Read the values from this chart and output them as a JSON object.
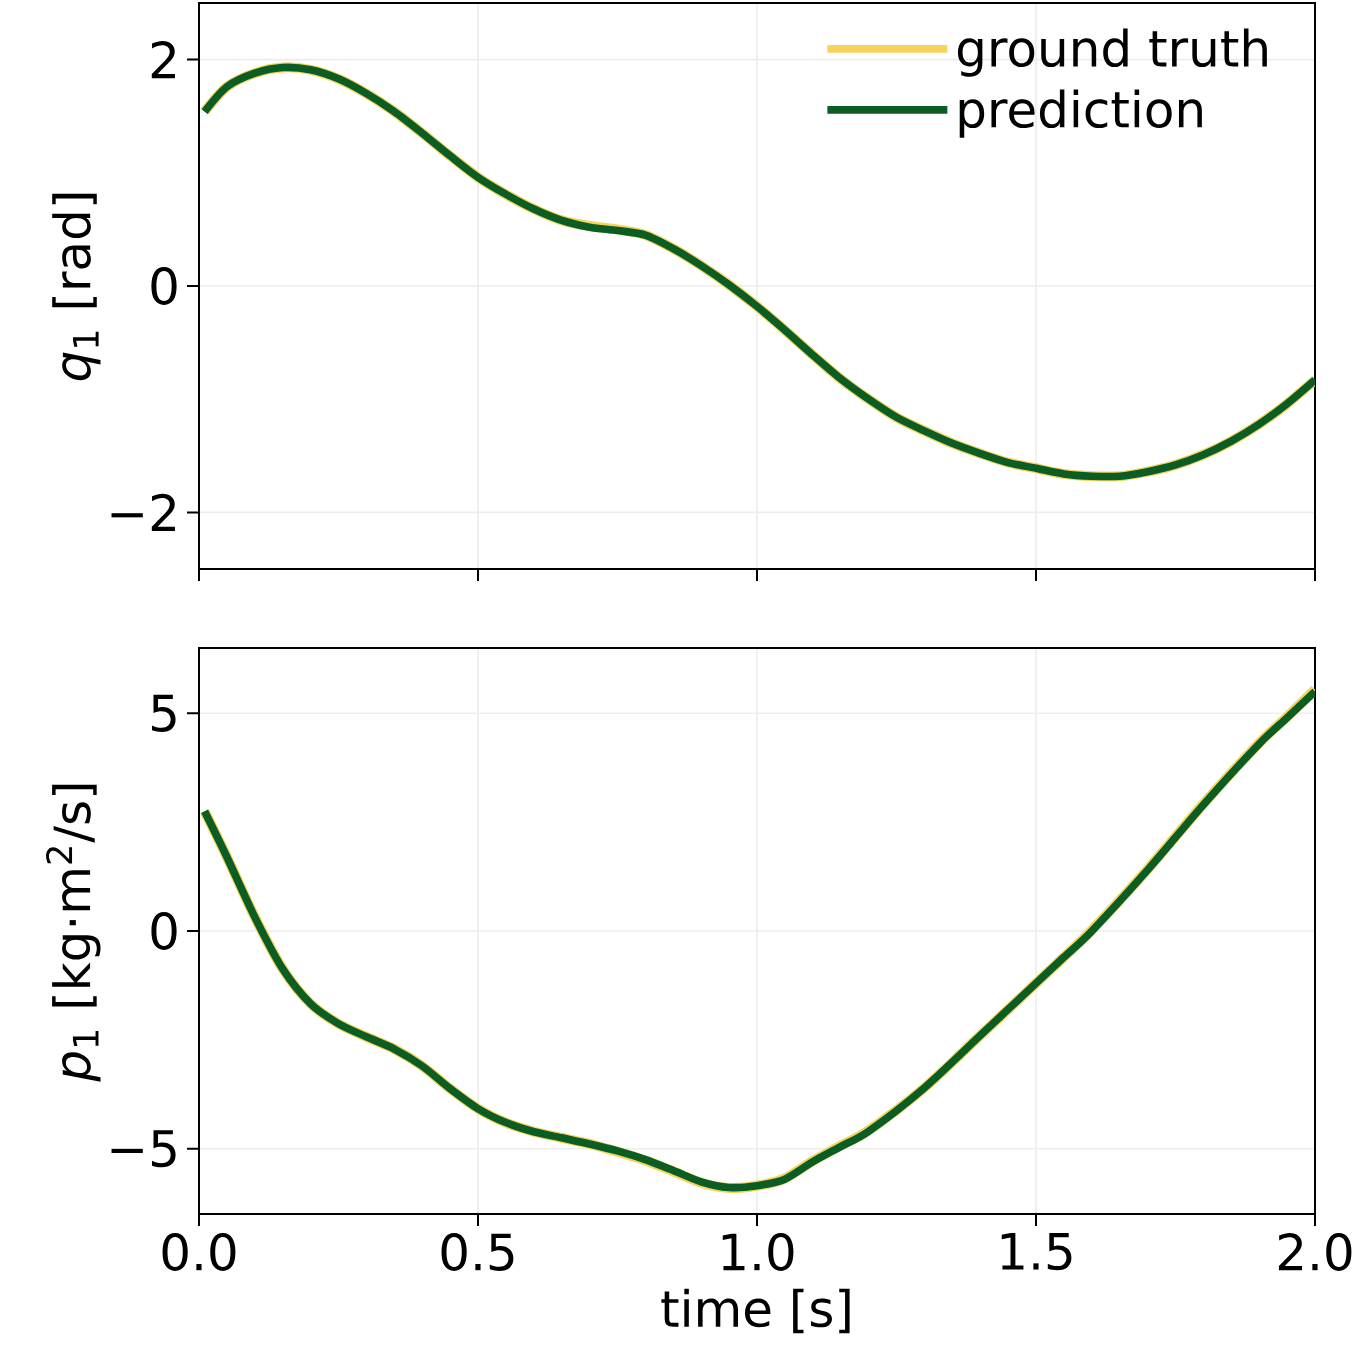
{
  "chart_data": [
    {
      "type": "line",
      "ylabel": "*q*$_{1}$ [rad]",
      "legend": "top right",
      "grid": true,
      "tick_labels": "y",
      "xlim": [
        0,
        2
      ],
      "ylim": [
        -2.5,
        2.5
      ],
      "xticks": [
        {
          "value": 0,
          "label": null
        },
        {
          "value": 0.5,
          "label": null
        },
        {
          "value": 1,
          "label": null
        },
        {
          "value": 1.5,
          "label": null
        },
        {
          "value": 2,
          "label": null
        }
      ],
      "yticks": [
        {
          "value": -2,
          "label": "−2"
        },
        {
          "value": 0,
          "label": "0"
        },
        {
          "value": 2,
          "label": "2"
        }
      ],
      "x": [
        0.01,
        0.05,
        0.1,
        0.15,
        0.2,
        0.25,
        0.3,
        0.35,
        0.4,
        0.45,
        0.5,
        0.55,
        0.6,
        0.65,
        0.7,
        0.75,
        0.8,
        0.85,
        0.9,
        0.95,
        1.0,
        1.05,
        1.1,
        1.15,
        1.2,
        1.25,
        1.3,
        1.35,
        1.4,
        1.45,
        1.5,
        1.55,
        1.6,
        1.65,
        1.7,
        1.75,
        1.8,
        1.85,
        1.9,
        1.95,
        2.0
      ],
      "series": [
        {
          "name": "ground truth",
          "color": "#f7d25c",
          "values": [
            1.54,
            1.76,
            1.88,
            1.93,
            1.91,
            1.83,
            1.7,
            1.54,
            1.35,
            1.15,
            0.96,
            0.81,
            0.68,
            0.58,
            0.53,
            0.5,
            0.45,
            0.33,
            0.18,
            0.01,
            -0.18,
            -0.39,
            -0.61,
            -0.82,
            -1.0,
            -1.16,
            -1.28,
            -1.39,
            -1.48,
            -1.56,
            -1.61,
            -1.66,
            -1.68,
            -1.68,
            -1.64,
            -1.58,
            -1.49,
            -1.37,
            -1.22,
            -1.04,
            -0.83
          ]
        },
        {
          "name": "prediction",
          "color": "#0b5e23",
          "values": [
            1.54,
            1.76,
            1.88,
            1.93,
            1.91,
            1.83,
            1.7,
            1.54,
            1.35,
            1.15,
            0.96,
            0.81,
            0.68,
            0.58,
            0.52,
            0.49,
            0.45,
            0.33,
            0.18,
            0.01,
            -0.18,
            -0.39,
            -0.61,
            -0.82,
            -1.0,
            -1.16,
            -1.28,
            -1.39,
            -1.48,
            -1.56,
            -1.61,
            -1.66,
            -1.68,
            -1.68,
            -1.64,
            -1.58,
            -1.49,
            -1.37,
            -1.22,
            -1.04,
            -0.83
          ]
        }
      ]
    },
    {
      "type": "line",
      "ylabel": "*p*$_{1}$ [kg·m$^{2}$/s]",
      "xlabel": "time [s]",
      "grid": true,
      "xlim": [
        0,
        2
      ],
      "ylim": [
        -6.5,
        6.5
      ],
      "xticks": [
        {
          "value": 0,
          "label": "0.0"
        },
        {
          "value": 0.5,
          "label": "0.5"
        },
        {
          "value": 1,
          "label": "1.0"
        },
        {
          "value": 1.5,
          "label": "1.5"
        },
        {
          "value": 2,
          "label": "2.0"
        }
      ],
      "yticks": [
        {
          "value": -5,
          "label": "−5"
        },
        {
          "value": 0,
          "label": "0"
        },
        {
          "value": 5,
          "label": "5"
        }
      ],
      "x": [
        0.01,
        0.05,
        0.1,
        0.15,
        0.2,
        0.25,
        0.3,
        0.35,
        0.4,
        0.45,
        0.5,
        0.55,
        0.6,
        0.65,
        0.7,
        0.75,
        0.8,
        0.85,
        0.9,
        0.95,
        1.0,
        1.05,
        1.1,
        1.15,
        1.2,
        1.3,
        1.4,
        1.5,
        1.55,
        1.6,
        1.7,
        1.8,
        1.9,
        1.95,
        2.0
      ],
      "series": [
        {
          "color": "#f7d25c",
          "values": [
            2.75,
            1.7,
            0.32,
            -0.87,
            -1.67,
            -2.13,
            -2.43,
            -2.71,
            -3.1,
            -3.62,
            -4.08,
            -4.4,
            -4.61,
            -4.75,
            -4.89,
            -5.07,
            -5.27,
            -5.52,
            -5.78,
            -5.9,
            -5.85,
            -5.68,
            -5.28,
            -4.93,
            -4.58,
            -3.6,
            -2.4,
            -1.2,
            -0.6,
            0.02,
            1.42,
            2.92,
            4.32,
            4.92,
            5.55
          ]
        },
        {
          "color": "#0b5e23",
          "values": [
            2.75,
            1.7,
            0.32,
            -0.87,
            -1.67,
            -2.13,
            -2.43,
            -2.71,
            -3.1,
            -3.62,
            -4.08,
            -4.4,
            -4.61,
            -4.75,
            -4.89,
            -5.05,
            -5.25,
            -5.5,
            -5.76,
            -5.89,
            -5.85,
            -5.7,
            -5.3,
            -4.95,
            -4.6,
            -3.6,
            -2.4,
            -1.2,
            -0.6,
            0.0,
            1.4,
            2.9,
            4.3,
            4.9,
            5.5
          ]
        }
      ]
    }
  ]
}
